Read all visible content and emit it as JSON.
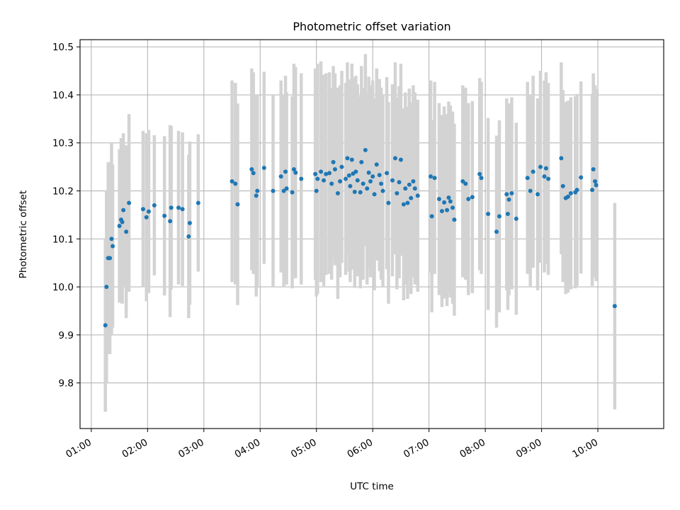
{
  "chart_data": {
    "type": "scatter",
    "title": "Photometric offset variation",
    "xlabel": "UTC time",
    "ylabel": "Photometric offset",
    "x_unit": "hours (UTC)",
    "xlim": [
      0.8,
      11.17
    ],
    "ylim": [
      9.705,
      10.515
    ],
    "x_ticks": [
      1,
      2,
      3,
      4,
      5,
      6,
      7,
      8,
      9,
      10
    ],
    "x_tick_labels": [
      "01:00",
      "02:00",
      "03:00",
      "04:00",
      "05:00",
      "06:00",
      "07:00",
      "08:00",
      "09:00",
      "10:00"
    ],
    "y_ticks": [
      9.8,
      9.9,
      10.0,
      10.1,
      10.2,
      10.3,
      10.4,
      10.5
    ],
    "y_tick_labels": [
      "9.8",
      "9.9",
      "10.0",
      "10.1",
      "10.2",
      "10.3",
      "10.4",
      "10.5"
    ],
    "grid": true,
    "colors": {
      "points": "#1f77b4",
      "errorbars": "#d3d3d3",
      "grid": "#b0b0b0",
      "axes": "#000000"
    },
    "series": [
      {
        "points": [
          [
            1.25,
            9.92,
            0.18
          ],
          [
            1.27,
            10.0,
            0.2
          ],
          [
            1.3,
            10.06,
            0.2
          ],
          [
            1.33,
            10.06,
            0.2
          ],
          [
            1.36,
            10.1,
            0.2
          ],
          [
            1.38,
            10.085,
            0.17
          ],
          [
            1.5,
            10.127,
            0.16
          ],
          [
            1.53,
            10.14,
            0.17
          ],
          [
            1.55,
            10.135,
            0.17
          ],
          [
            1.57,
            10.16,
            0.16
          ],
          [
            1.62,
            10.115,
            0.18
          ],
          [
            1.67,
            10.175,
            0.185
          ],
          [
            1.92,
            10.162,
            0.163
          ],
          [
            1.98,
            10.145,
            0.175
          ],
          [
            2.02,
            10.157,
            0.17
          ],
          [
            2.12,
            10.17,
            0.146
          ],
          [
            2.3,
            10.148,
            0.166
          ],
          [
            2.4,
            10.137,
            0.2
          ],
          [
            2.42,
            10.165,
            0.17
          ],
          [
            2.55,
            10.165,
            0.16
          ],
          [
            2.62,
            10.162,
            0.16
          ],
          [
            2.73,
            10.105,
            0.17
          ],
          [
            2.75,
            10.133,
            0.17
          ],
          [
            2.9,
            10.175,
            0.143
          ],
          [
            3.5,
            10.22,
            0.21
          ],
          [
            3.56,
            10.215,
            0.21
          ],
          [
            3.6,
            10.172,
            0.21
          ],
          [
            3.85,
            10.245,
            0.21
          ],
          [
            3.88,
            10.237,
            0.21
          ],
          [
            3.93,
            10.19,
            0.21
          ],
          [
            3.95,
            10.2,
            0.2
          ],
          [
            4.07,
            10.248,
            0.2
          ],
          [
            4.23,
            10.2,
            0.2
          ],
          [
            4.37,
            10.23,
            0.2
          ],
          [
            4.42,
            10.2,
            0.2
          ],
          [
            4.45,
            10.24,
            0.2
          ],
          [
            4.47,
            10.205,
            0.2
          ],
          [
            4.57,
            10.197,
            0.2
          ],
          [
            4.6,
            10.245,
            0.22
          ],
          [
            4.63,
            10.238,
            0.22
          ],
          [
            4.73,
            10.225,
            0.22
          ],
          [
            4.98,
            10.235,
            0.22
          ],
          [
            5.0,
            10.2,
            0.22
          ],
          [
            5.02,
            10.225,
            0.24
          ],
          [
            5.08,
            10.24,
            0.23
          ],
          [
            5.13,
            10.222,
            0.22
          ],
          [
            5.17,
            10.235,
            0.21
          ],
          [
            5.23,
            10.237,
            0.21
          ],
          [
            5.27,
            10.215,
            0.2
          ],
          [
            5.3,
            10.26,
            0.2
          ],
          [
            5.33,
            10.245,
            0.2
          ],
          [
            5.38,
            10.195,
            0.22
          ],
          [
            5.42,
            10.22,
            0.2
          ],
          [
            5.45,
            10.25,
            0.2
          ],
          [
            5.52,
            10.225,
            0.2
          ],
          [
            5.55,
            10.268,
            0.2
          ],
          [
            5.58,
            10.232,
            0.2
          ],
          [
            5.6,
            10.21,
            0.2
          ],
          [
            5.63,
            10.265,
            0.2
          ],
          [
            5.65,
            10.236,
            0.2
          ],
          [
            5.68,
            10.198,
            0.2
          ],
          [
            5.7,
            10.24,
            0.2
          ],
          [
            5.73,
            10.222,
            0.2
          ],
          [
            5.78,
            10.197,
            0.2
          ],
          [
            5.8,
            10.26,
            0.2
          ],
          [
            5.83,
            10.215,
            0.2
          ],
          [
            5.87,
            10.285,
            0.2
          ],
          [
            5.9,
            10.205,
            0.2
          ],
          [
            5.93,
            10.238,
            0.2
          ],
          [
            5.96,
            10.22,
            0.2
          ],
          [
            6.0,
            10.23,
            0.2
          ],
          [
            6.03,
            10.193,
            0.2
          ],
          [
            6.07,
            10.255,
            0.2
          ],
          [
            6.12,
            10.233,
            0.2
          ],
          [
            6.15,
            10.215,
            0.2
          ],
          [
            6.18,
            10.2,
            0.2
          ],
          [
            6.25,
            10.237,
            0.2
          ],
          [
            6.28,
            10.175,
            0.21
          ],
          [
            6.35,
            10.222,
            0.2
          ],
          [
            6.4,
            10.268,
            0.2
          ],
          [
            6.43,
            10.195,
            0.2
          ],
          [
            6.47,
            10.218,
            0.2
          ],
          [
            6.5,
            10.265,
            0.2
          ],
          [
            6.55,
            10.172,
            0.2
          ],
          [
            6.58,
            10.205,
            0.2
          ],
          [
            6.62,
            10.175,
            0.2
          ],
          [
            6.65,
            10.213,
            0.2
          ],
          [
            6.68,
            10.185,
            0.2
          ],
          [
            6.72,
            10.22,
            0.2
          ],
          [
            6.75,
            10.205,
            0.2
          ],
          [
            6.8,
            10.19,
            0.2
          ],
          [
            7.03,
            10.23,
            0.2
          ],
          [
            7.05,
            10.147,
            0.2
          ],
          [
            7.1,
            10.227,
            0.2
          ],
          [
            7.18,
            10.183,
            0.2
          ],
          [
            7.23,
            10.158,
            0.2
          ],
          [
            7.27,
            10.176,
            0.2
          ],
          [
            7.32,
            10.16,
            0.2
          ],
          [
            7.35,
            10.186,
            0.2
          ],
          [
            7.38,
            10.178,
            0.2
          ],
          [
            7.42,
            10.165,
            0.2
          ],
          [
            7.45,
            10.14,
            0.2
          ],
          [
            7.6,
            10.22,
            0.2
          ],
          [
            7.65,
            10.215,
            0.2
          ],
          [
            7.7,
            10.183,
            0.2
          ],
          [
            7.77,
            10.187,
            0.2
          ],
          [
            7.9,
            10.235,
            0.2
          ],
          [
            7.93,
            10.227,
            0.2
          ],
          [
            8.05,
            10.152,
            0.2
          ],
          [
            8.2,
            10.115,
            0.2
          ],
          [
            8.25,
            10.147,
            0.2
          ],
          [
            8.38,
            10.193,
            0.2
          ],
          [
            8.4,
            10.152,
            0.2
          ],
          [
            8.42,
            10.182,
            0.2
          ],
          [
            8.47,
            10.195,
            0.2
          ],
          [
            8.55,
            10.142,
            0.2
          ],
          [
            8.75,
            10.227,
            0.2
          ],
          [
            8.8,
            10.2,
            0.2
          ],
          [
            8.85,
            10.24,
            0.2
          ],
          [
            8.93,
            10.193,
            0.2
          ],
          [
            8.98,
            10.25,
            0.2
          ],
          [
            9.05,
            10.23,
            0.2
          ],
          [
            9.08,
            10.247,
            0.2
          ],
          [
            9.12,
            10.225,
            0.2
          ],
          [
            9.35,
            10.268,
            0.2
          ],
          [
            9.38,
            10.21,
            0.2
          ],
          [
            9.43,
            10.185,
            0.2
          ],
          [
            9.47,
            10.188,
            0.2
          ],
          [
            9.52,
            10.195,
            0.2
          ],
          [
            9.6,
            10.197,
            0.2
          ],
          [
            9.63,
            10.202,
            0.2
          ],
          [
            9.7,
            10.228,
            0.2
          ],
          [
            9.9,
            10.202,
            0.2
          ],
          [
            9.92,
            10.245,
            0.2
          ],
          [
            9.95,
            10.22,
            0.2
          ],
          [
            9.97,
            10.212,
            0.2
          ],
          [
            10.3,
            9.96,
            0.215
          ]
        ]
      }
    ]
  }
}
